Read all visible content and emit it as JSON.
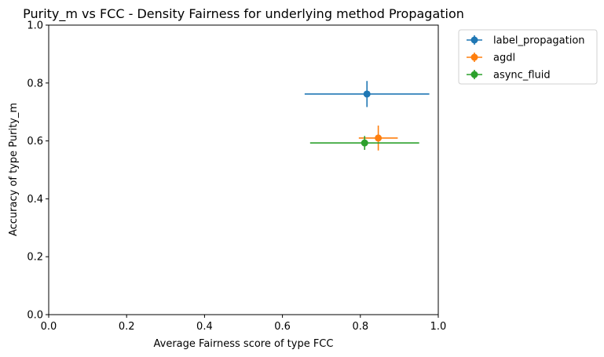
{
  "chart_data": {
    "type": "scatter",
    "title": "Purity_m vs FCC - Density Fairness for underlying method Propagation",
    "xlabel": "Average Fairness score of type FCC",
    "ylabel": "Accuracy of type Purity_m",
    "xlim": [
      0.0,
      1.0
    ],
    "ylim": [
      0.0,
      1.0
    ],
    "x_ticks": [
      "0.0",
      "0.2",
      "0.4",
      "0.6",
      "0.8",
      "1.0"
    ],
    "y_ticks": [
      "0.0",
      "0.2",
      "0.4",
      "0.6",
      "0.8",
      "1.0"
    ],
    "grid": false,
    "legend_position": "outside-top-right",
    "series": [
      {
        "name": "label_propagation",
        "color": "#1f77b4",
        "x": 0.817,
        "y": 0.762,
        "x_err": 0.16,
        "y_err": 0.045
      },
      {
        "name": "agdl",
        "color": "#ff7f0e",
        "x": 0.846,
        "y": 0.61,
        "x_err": 0.05,
        "y_err": 0.043
      },
      {
        "name": "async_fluid",
        "color": "#2ca02c",
        "x": 0.811,
        "y": 0.593,
        "x_err": 0.14,
        "y_err": 0.024
      }
    ]
  }
}
